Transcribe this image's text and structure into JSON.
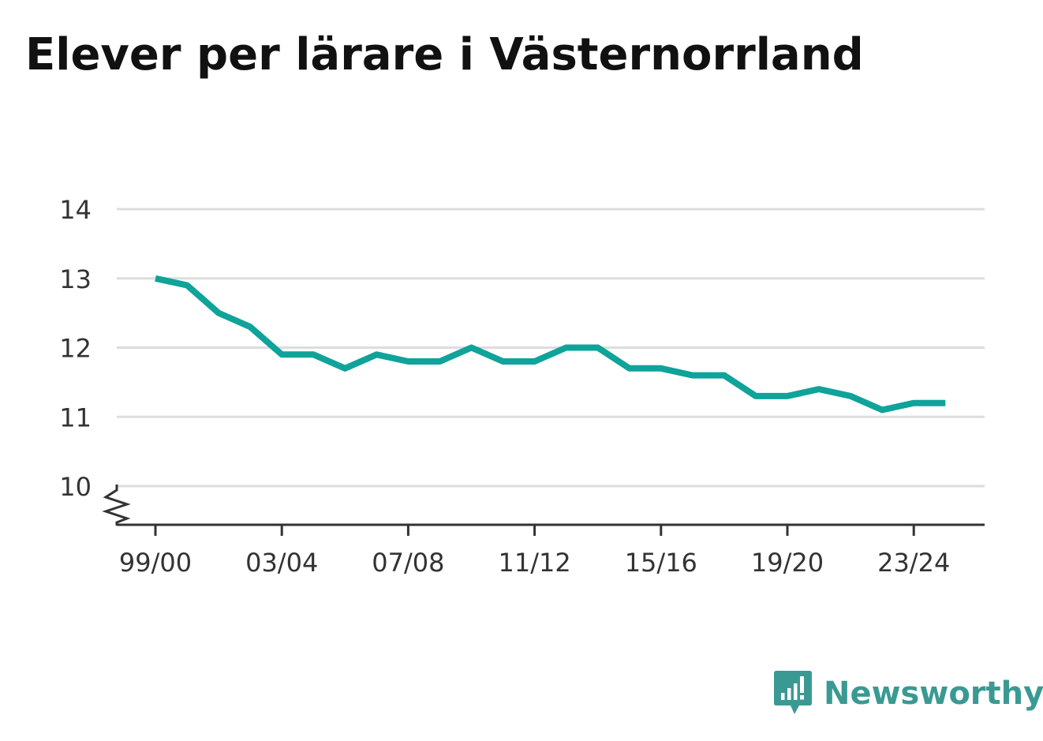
{
  "title": "Elever per lärare i Västernorrland",
  "brand": {
    "name": "Newsworthy",
    "color": "#3a9a93"
  },
  "chart_data": {
    "type": "line",
    "title": "Elever per lärare i Västernorrland",
    "xlabel": "",
    "ylabel": "",
    "x": [
      "99/00",
      "00/01",
      "01/02",
      "02/03",
      "03/04",
      "04/05",
      "05/06",
      "06/07",
      "07/08",
      "08/09",
      "09/10",
      "10/11",
      "11/12",
      "12/13",
      "13/14",
      "14/15",
      "15/16",
      "16/17",
      "17/18",
      "18/19",
      "19/20",
      "20/21",
      "21/22",
      "22/23",
      "23/24",
      "24/25"
    ],
    "x_tick_labels": [
      "99/00",
      "03/04",
      "07/08",
      "11/12",
      "15/16",
      "19/20",
      "23/24"
    ],
    "series": [
      {
        "values": [
          13.0,
          12.9,
          12.5,
          12.3,
          11.9,
          11.9,
          11.7,
          11.9,
          11.8,
          11.8,
          12.0,
          11.8,
          11.8,
          12.0,
          12.0,
          11.7,
          11.7,
          11.6,
          11.6,
          11.3,
          11.3,
          11.4,
          11.3,
          11.1,
          11.2,
          11.2
        ],
        "color": "#0fa39a"
      }
    ],
    "yticks": [
      10,
      11,
      12,
      13,
      14
    ],
    "ylim": [
      10,
      14
    ],
    "y_axis_break": true,
    "grid": true,
    "legend": "none"
  }
}
